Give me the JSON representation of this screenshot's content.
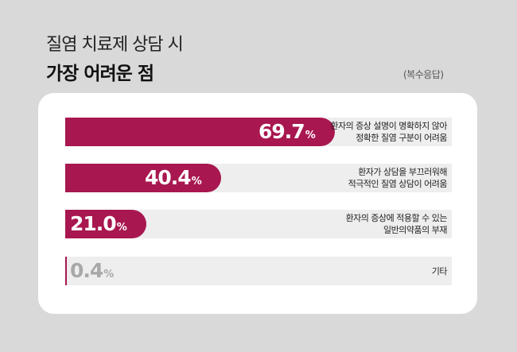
{
  "header": {
    "title_line1": "질염 치료제 상담 시",
    "title_line2": "가장 어려운 점",
    "note": "(복수응답)"
  },
  "chart_data": {
    "type": "bar",
    "orientation": "horizontal",
    "unit": "%",
    "xlim": [
      0,
      100
    ],
    "bar_color": "#a8174f",
    "track_color": "#eeeeee",
    "categories": [
      [
        "환자의 증상 설명이 명확하지 않아",
        "정확한 질염 구분이 어려움"
      ],
      [
        "환자가 상담을 부끄러워해",
        "적극적인 질염 상담이 어려움"
      ],
      [
        "환자의 증상에 적용할 수 있는",
        "일반의약품의 부재"
      ],
      [
        "기타"
      ]
    ],
    "values": [
      69.7,
      40.4,
      21.0,
      0.4
    ],
    "value_labels": [
      "69.7",
      "40.4",
      "21.0",
      "0.4"
    ]
  }
}
